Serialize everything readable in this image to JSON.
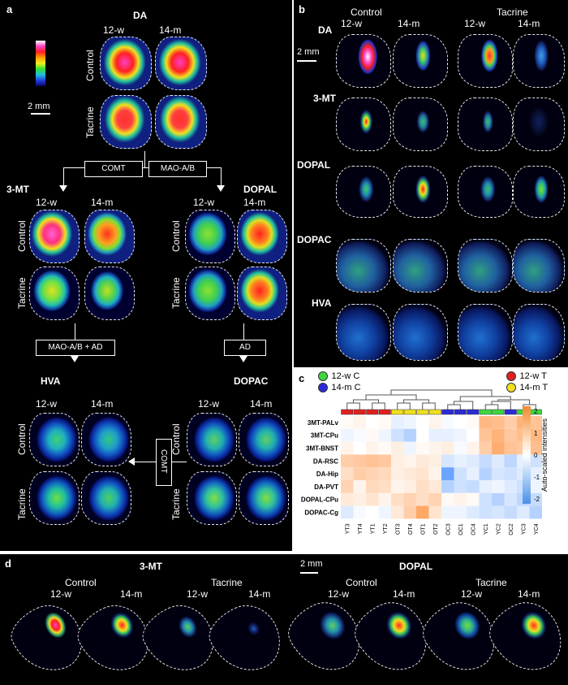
{
  "panel_a": {
    "letter": "a",
    "da_title": "DA",
    "col_12w": "12-w",
    "col_14m": "14-m",
    "row_control": "Control",
    "row_tacrine": "Tacrine",
    "scale_label": "2 mm",
    "enzyme_comt": "COMT",
    "enzyme_mao": "MAO-A/B",
    "mt_title": "3-MT",
    "dopal_title": "DOPAL",
    "enzyme_mao_ad": "MAO-A/B + AD",
    "enzyme_ad": "AD",
    "hva_title": "HVA",
    "dopac_title": "DOPAC",
    "enzyme_comt2": "COMT"
  },
  "panel_b": {
    "letter": "b",
    "group_control": "Control",
    "group_tacrine": "Tacrine",
    "col_12w_a": "12-w",
    "col_14m_a": "14-m",
    "col_12w_b": "12-w",
    "col_14m_b": "14-m",
    "scale_label": "2 mm",
    "rows": [
      "DA",
      "3-MT",
      "DOPAL",
      "DOPAC",
      "HVA"
    ]
  },
  "panel_c": {
    "letter": "c",
    "legend": [
      {
        "label": "12-w C",
        "color": "#3fd63f"
      },
      {
        "label": "14-m C",
        "color": "#2b2bd6"
      },
      {
        "label": "12-w T",
        "color": "#e02020"
      },
      {
        "label": "14-m T",
        "color": "#f0e020"
      }
    ],
    "row_labels": [
      "3MT-PALv",
      "3MT-CPu",
      "3MT-BNST",
      "DA-RSC",
      "DA-Hip",
      "DA-PVT",
      "DOPAL-CPu",
      "DOPAC-Cg"
    ],
    "col_labels": [
      "YT3",
      "YT4",
      "YT1",
      "YT2",
      "OT3",
      "OT4",
      "OT1",
      "OT2",
      "OC3",
      "OC1",
      "OC4",
      "YC1",
      "YC2",
      "OC2",
      "YC3",
      "YC4"
    ],
    "col_groups": [
      "red",
      "red",
      "red",
      "red",
      "yellow",
      "yellow",
      "yellow",
      "yellow",
      "blue",
      "blue",
      "blue",
      "green",
      "green",
      "blue",
      "green",
      "green"
    ],
    "colorbar_title": "Auto-scaled intensities",
    "colorbar_ticks": [
      "2",
      "1",
      "0",
      "-1",
      "-2"
    ],
    "values": [
      [
        0.1,
        0.2,
        0.0,
        0.1,
        -0.3,
        -0.2,
        0.0,
        0.2,
        -0.1,
        0.0,
        0.1,
        1.3,
        1.2,
        0.9,
        1.4,
        1.1
      ],
      [
        -0.2,
        -0.1,
        0.1,
        -0.2,
        -0.6,
        -0.9,
        0.0,
        -0.3,
        -0.3,
        -0.2,
        0.0,
        1.1,
        1.4,
        1.0,
        1.2,
        1.3
      ],
      [
        0.2,
        0.0,
        0.2,
        0.1,
        0.3,
        -0.2,
        0.1,
        0.2,
        0.3,
        -0.1,
        0.2,
        0.9,
        1.5,
        1.1,
        1.0,
        1.2
      ],
      [
        0.9,
        1.0,
        1.1,
        1.0,
        0.3,
        0.2,
        0.4,
        0.3,
        -0.5,
        -0.3,
        -0.4,
        -0.7,
        -0.4,
        -0.8,
        -0.3,
        -0.6
      ],
      [
        0.6,
        0.9,
        0.8,
        0.7,
        0.3,
        0.4,
        0.5,
        0.2,
        -1.8,
        -0.6,
        -0.3,
        -0.9,
        -0.5,
        -0.6,
        -0.4,
        -0.3
      ],
      [
        0.8,
        0.2,
        0.7,
        0.6,
        0.2,
        0.3,
        0.6,
        0.4,
        -0.9,
        -0.6,
        -0.7,
        -0.3,
        -0.2,
        -0.4,
        -0.6,
        -0.2
      ],
      [
        0.4,
        0.3,
        0.5,
        0.2,
        0.6,
        0.8,
        0.6,
        0.8,
        0.1,
        0.2,
        0.1,
        -0.6,
        -0.9,
        -0.5,
        -0.8,
        -0.7
      ],
      [
        -0.4,
        -0.1,
        0.0,
        -0.2,
        0.4,
        0.9,
        1.6,
        0.5,
        -0.2,
        -0.2,
        -0.4,
        -0.6,
        -0.5,
        -0.7,
        -0.4,
        -0.9
      ]
    ]
  },
  "panel_d": {
    "letter": "d",
    "mt_title": "3-MT",
    "dopal_title": "DOPAL",
    "scale_label": "2 mm",
    "group_control_1": "Control",
    "group_tacrine_1": "Tacrine",
    "group_control_2": "Control",
    "group_tacrine_2": "Tacrine",
    "cols": [
      "12-w",
      "14-m",
      "12-w",
      "14-m",
      "12-w",
      "14-m",
      "12-w",
      "14-m"
    ]
  },
  "colors": {
    "background": "#000000",
    "outline": "#e8e8e8",
    "heat_high": "#ff3ec8",
    "heat_mid": "#e4e820",
    "heat_low": "#1a2bd0"
  }
}
